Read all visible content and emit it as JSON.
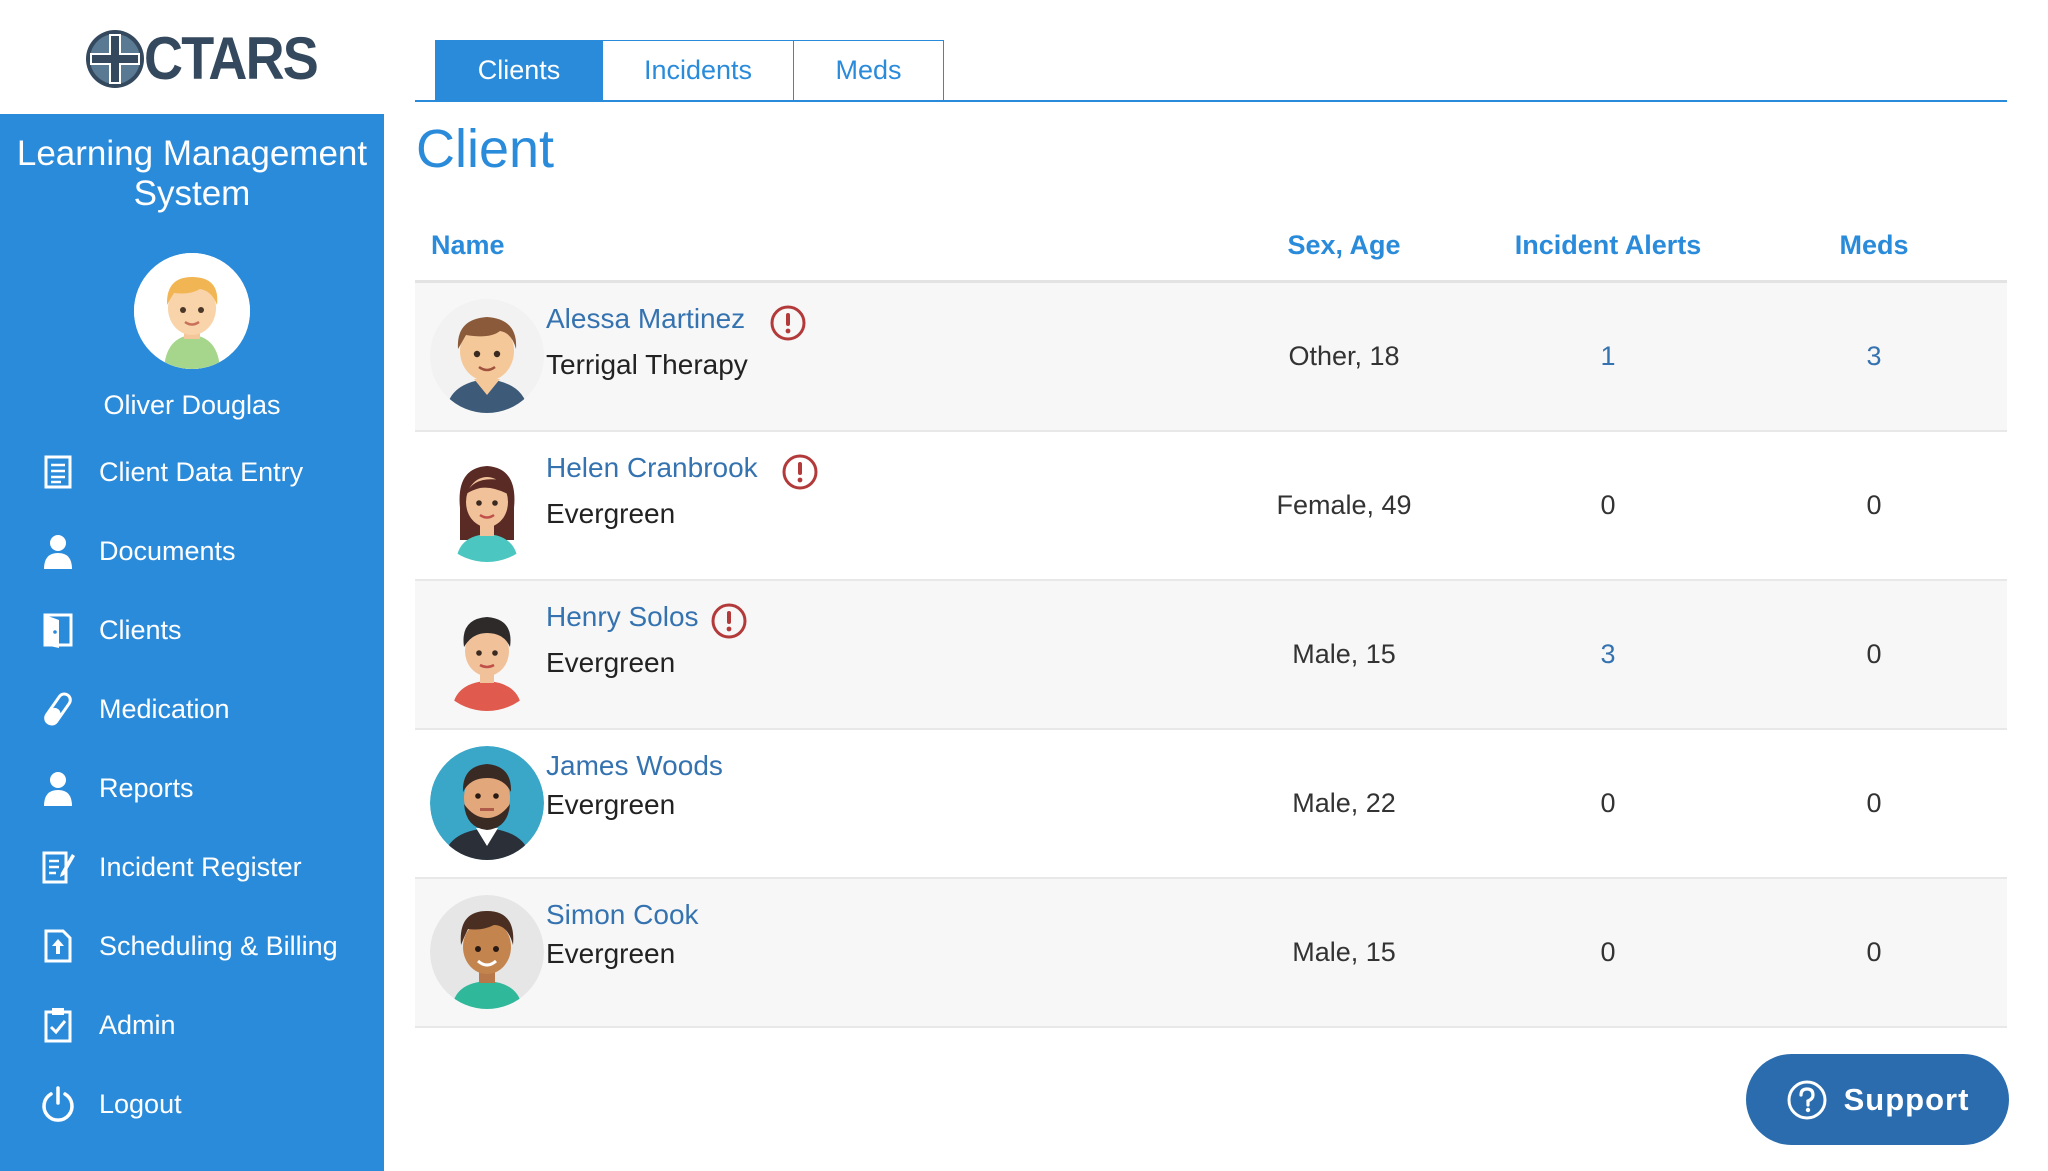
{
  "brand": {
    "logo_text": "CTARS"
  },
  "sidebar": {
    "title": "Learning Management System",
    "user_name": "Oliver Douglas",
    "items": [
      {
        "label": "Client Data Entry",
        "icon": "document-list-icon"
      },
      {
        "label": "Documents",
        "icon": "person-icon"
      },
      {
        "label": "Clients",
        "icon": "door-icon"
      },
      {
        "label": "Medication",
        "icon": "pill-icon"
      },
      {
        "label": "Reports",
        "icon": "person-icon"
      },
      {
        "label": "Incident Register",
        "icon": "document-edit-icon"
      },
      {
        "label": "Scheduling & Billing",
        "icon": "document-upload-icon"
      },
      {
        "label": "Admin",
        "icon": "clipboard-check-icon"
      },
      {
        "label": "Logout",
        "icon": "power-icon"
      }
    ],
    "background_color": "#2a8bdb"
  },
  "tabs": [
    {
      "label": "Clients",
      "active": true
    },
    {
      "label": "Incidents",
      "active": false
    },
    {
      "label": "Meds",
      "active": false
    }
  ],
  "page_title": "Client",
  "table": {
    "columns": {
      "name": "Name",
      "sex_age": "Sex, Age",
      "incident_alerts": "Incident Alerts",
      "meds": "Meds"
    },
    "rows": [
      {
        "name": "Alessa Martinez",
        "org": "Terrigal Therapy",
        "alert": true,
        "sex_age": "Other, 18",
        "incident_alerts": "1",
        "meds": "3"
      },
      {
        "name": "Helen Cranbrook",
        "org": "Evergreen",
        "alert": true,
        "sex_age": "Female, 49",
        "incident_alerts": "0",
        "meds": "0"
      },
      {
        "name": "Henry Solos",
        "org": "Evergreen",
        "alert": true,
        "sex_age": "Male, 15",
        "incident_alerts": "3",
        "meds": "0"
      },
      {
        "name": "James Woods",
        "org": "Evergreen",
        "alert": false,
        "sex_age": "Male, 22",
        "incident_alerts": "0",
        "meds": "0"
      },
      {
        "name": "Simon Cook",
        "org": "Evergreen",
        "alert": false,
        "sex_age": "Male, 15",
        "incident_alerts": "0",
        "meds": "0"
      }
    ]
  },
  "support": {
    "label": "Support"
  },
  "colors": {
    "accent": "#2a8bdb",
    "link": "#3573b0",
    "alert": "#b33a3a",
    "support_button": "#2a6cad"
  }
}
